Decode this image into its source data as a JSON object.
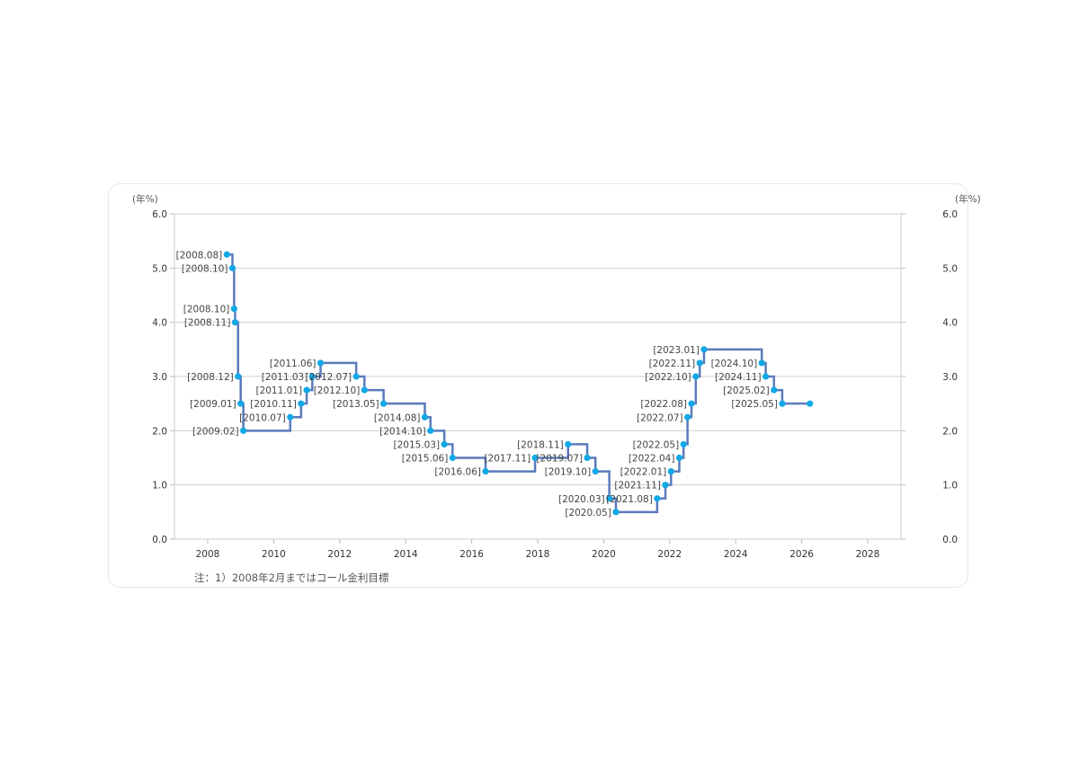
{
  "chart_data": {
    "type": "line",
    "step": "horizontal-then-vertical",
    "y_unit_left": "(年%)",
    "y_unit_right": "(年%)",
    "xlim": [
      2007,
      2029
    ],
    "ylim": [
      0,
      6
    ],
    "x_ticks": [
      "2008",
      "2010",
      "2012",
      "2014",
      "2016",
      "2018",
      "2020",
      "2022",
      "2024",
      "2026",
      "2028"
    ],
    "y_ticks": [
      "0.0",
      "1.0",
      "2.0",
      "3.0",
      "4.0",
      "5.0",
      "6.0"
    ],
    "grid": "horizontal",
    "colors": {
      "line": "#5b7bbd",
      "marker": "#12a8e6",
      "grid": "#d0d0d0"
    },
    "series": [
      {
        "name": "rate",
        "points": [
          {
            "label": "[2008.08]",
            "x": 2008.58,
            "y": 5.25
          },
          {
            "label": "[2008.10]",
            "x": 2008.75,
            "y": 5.0
          },
          {
            "label": "[2008.10]",
            "x": 2008.8,
            "y": 4.25
          },
          {
            "label": "[2008.11]",
            "x": 2008.83,
            "y": 4.0
          },
          {
            "label": "[2008.12]",
            "x": 2008.92,
            "y": 3.0
          },
          {
            "label": "[2009.01]",
            "x": 2009.0,
            "y": 2.5
          },
          {
            "label": "[2009.02]",
            "x": 2009.08,
            "y": 2.0
          },
          {
            "label": "[2010.07]",
            "x": 2010.5,
            "y": 2.25
          },
          {
            "label": "[2010.11]",
            "x": 2010.83,
            "y": 2.5
          },
          {
            "label": "[2011.01]",
            "x": 2011.0,
            "y": 2.75
          },
          {
            "label": "[2011.03]",
            "x": 2011.17,
            "y": 3.0
          },
          {
            "label": "[2011.06]",
            "x": 2011.42,
            "y": 3.25
          },
          {
            "label": "[2012.07]",
            "x": 2012.5,
            "y": 3.0
          },
          {
            "label": "[2012.10]",
            "x": 2012.75,
            "y": 2.75
          },
          {
            "label": "[2013.05]",
            "x": 2013.33,
            "y": 2.5
          },
          {
            "label": "[2014.08]",
            "x": 2014.58,
            "y": 2.25
          },
          {
            "label": "[2014.10]",
            "x": 2014.75,
            "y": 2.0
          },
          {
            "label": "[2015.03]",
            "x": 2015.17,
            "y": 1.75
          },
          {
            "label": "[2015.06]",
            "x": 2015.42,
            "y": 1.5
          },
          {
            "label": "[2016.06]",
            "x": 2016.42,
            "y": 1.25
          },
          {
            "label": "[2017.11]",
            "x": 2017.92,
            "y": 1.5
          },
          {
            "label": "[2018.11]",
            "x": 2018.92,
            "y": 1.75
          },
          {
            "label": "[2019.07]",
            "x": 2019.5,
            "y": 1.5
          },
          {
            "label": "[2019.10]",
            "x": 2019.75,
            "y": 1.25
          },
          {
            "label": "[2020.03]",
            "x": 2020.17,
            "y": 0.75
          },
          {
            "label": "[2020.05]",
            "x": 2020.37,
            "y": 0.5
          },
          {
            "label": "[2021.08]",
            "x": 2021.62,
            "y": 0.75
          },
          {
            "label": "[2021.11]",
            "x": 2021.87,
            "y": 1.0
          },
          {
            "label": "[2022.01]",
            "x": 2022.04,
            "y": 1.25
          },
          {
            "label": "[2022.04]",
            "x": 2022.29,
            "y": 1.5
          },
          {
            "label": "[2022.05]",
            "x": 2022.42,
            "y": 1.75
          },
          {
            "label": "[2022.07]",
            "x": 2022.54,
            "y": 2.25
          },
          {
            "label": "[2022.08]",
            "x": 2022.66,
            "y": 2.5
          },
          {
            "label": "[2022.10]",
            "x": 2022.79,
            "y": 3.0
          },
          {
            "label": "[2022.11]",
            "x": 2022.91,
            "y": 3.25
          },
          {
            "label": "[2023.01]",
            "x": 2023.04,
            "y": 3.5
          },
          {
            "label": "[2024.10]",
            "x": 2024.79,
            "y": 3.25
          },
          {
            "label": "[2024.11]",
            "x": 2024.91,
            "y": 3.0
          },
          {
            "label": "[2025.02]",
            "x": 2025.16,
            "y": 2.75
          },
          {
            "label": "[2025.05]",
            "x": 2025.41,
            "y": 2.5
          },
          {
            "label": "",
            "x": 2026.25,
            "y": 2.5
          }
        ]
      }
    ],
    "note": "注：1）2008年2月まではコール金利目標"
  }
}
